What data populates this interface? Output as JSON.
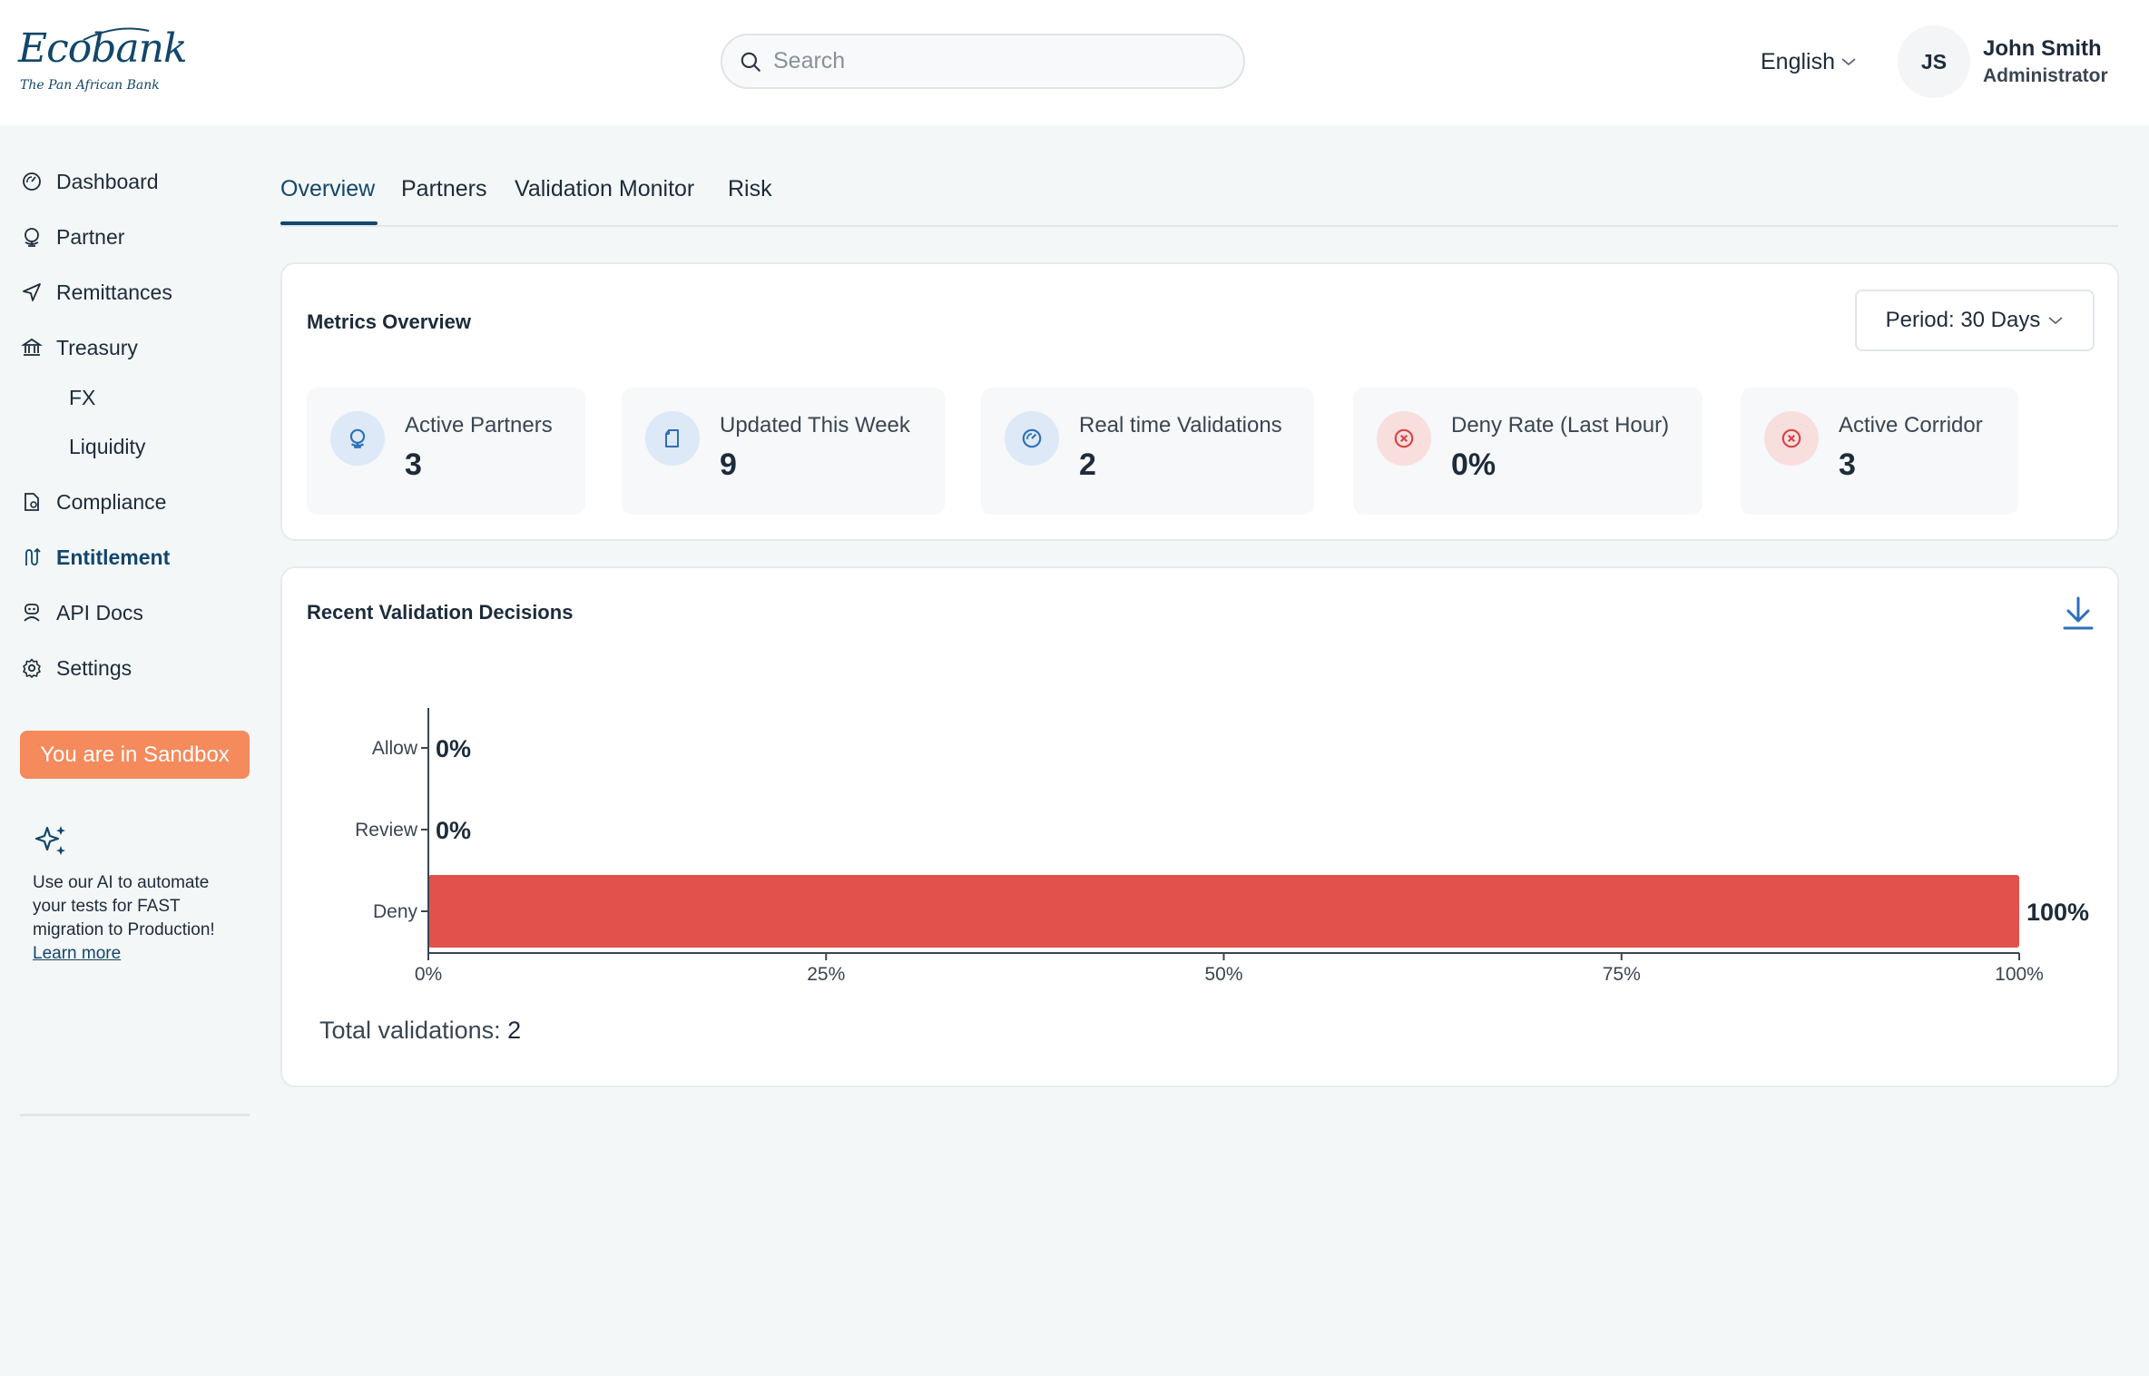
{
  "brand": {
    "name": "Ecobank",
    "tagline": "The Pan African Bank",
    "color": "#12466b"
  },
  "search": {
    "placeholder": "Search",
    "value": ""
  },
  "language": {
    "selected": "English"
  },
  "user": {
    "initials": "JS",
    "name": "John Smith",
    "role": "Administrator"
  },
  "sidebar": {
    "items": [
      {
        "label": "Dashboard",
        "icon": "gauge-icon"
      },
      {
        "label": "Partner",
        "icon": "globe-icon"
      },
      {
        "label": "Remittances",
        "icon": "send-icon"
      },
      {
        "label": "Treasury",
        "icon": "bank-icon"
      },
      {
        "label": "Compliance",
        "icon": "document-check-icon"
      },
      {
        "label": "Entitlement",
        "icon": "route-icon",
        "active": true
      },
      {
        "label": "API Docs",
        "icon": "robot-icon"
      },
      {
        "label": "Settings",
        "icon": "gear-icon"
      }
    ],
    "treasury_sub": [
      "FX",
      "Liquidity"
    ],
    "sandbox_label": "You are in Sandbox",
    "sandbox_color": "#f58a5c",
    "ai_promo": {
      "text": "Use our AI to automate your tests for FAST migration to Production!",
      "link": "Learn more"
    }
  },
  "tabs": [
    {
      "label": "Overview",
      "active": true
    },
    {
      "label": "Partners"
    },
    {
      "label": "Validation Monitor"
    },
    {
      "label": "Risk"
    }
  ],
  "metrics": {
    "title": "Metrics Overview",
    "period": "Period: 30 Days",
    "cards": [
      {
        "label": "Active Partners",
        "value": "3",
        "icon": "globe-icon",
        "tone": "blue"
      },
      {
        "label": "Updated This Week",
        "value": "9",
        "icon": "document-icon",
        "tone": "blue"
      },
      {
        "label": "Real time Validations",
        "value": "2",
        "icon": "gauge-icon",
        "tone": "blue"
      },
      {
        "label": "Deny Rate (Last Hour)",
        "value": "0%",
        "icon": "x-circle-icon",
        "tone": "red"
      },
      {
        "label": "Active Corridor",
        "value": "3",
        "icon": "x-circle-icon",
        "tone": "red"
      }
    ]
  },
  "validations": {
    "title": "Recent Validation Decisions",
    "total_label": "Total validations:",
    "total_value": "2",
    "download_icon": "download-icon"
  },
  "chart_data": {
    "type": "bar",
    "orientation": "horizontal",
    "categories": [
      "Allow",
      "Review",
      "Deny"
    ],
    "values": [
      0,
      0,
      100
    ],
    "value_labels": [
      "0%",
      "0%",
      "100%"
    ],
    "xlim": [
      0,
      100
    ],
    "xticks": [
      "0%",
      "25%",
      "50%",
      "75%",
      "100%"
    ],
    "bar_color": "#e2514c",
    "grid": false,
    "legend": "none"
  }
}
